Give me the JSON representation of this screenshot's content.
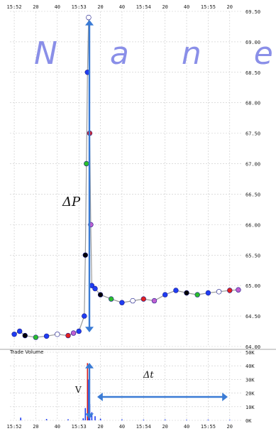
{
  "watermark": "N a n e x",
  "annotations": {
    "delta_p": "ΔP",
    "delta_t": "Δt",
    "v": "V"
  },
  "colors": {
    "annotation_arrow": "#3a7bd5",
    "price_main": "#1f3df2",
    "volume_bar": "#1f3df2",
    "volume_spike": "#d42020"
  },
  "chart_data": [
    {
      "type": "scatter",
      "title": "",
      "xlabel": "",
      "ylabel": "",
      "y_axis_side": "right",
      "x_tick_labels_top": [
        "15:52",
        "20",
        "40",
        "15:53",
        "20",
        "40",
        "15:54",
        "20",
        "40",
        "15:55",
        "20"
      ],
      "y_ticks": [
        "69.50",
        "69.00",
        "68.50",
        "68.00",
        "67.50",
        "67.00",
        "66.50",
        "66.00",
        "65.50",
        "65.00",
        "64.50",
        "64.00"
      ],
      "ylim": [
        64.0,
        69.5
      ],
      "grid": true,
      "series": [
        {
          "values_time_price": [
            [
              "15:52:00",
              64.2
            ],
            [
              "15:52:05",
              64.25
            ],
            [
              "15:52:10",
              64.18
            ],
            [
              "15:52:20",
              64.15
            ],
            [
              "15:52:30",
              64.17
            ],
            [
              "15:52:40",
              64.2
            ],
            [
              "15:52:50",
              64.18
            ],
            [
              "15:52:55",
              64.22
            ],
            [
              "15:53:00",
              64.25
            ],
            [
              "15:53:05",
              64.5
            ],
            [
              "15:53:06",
              65.5
            ],
            [
              "15:53:07",
              67.0
            ],
            [
              "15:53:08",
              68.5
            ],
            [
              "15:53:09",
              69.4
            ],
            [
              "15:53:10",
              67.5
            ],
            [
              "15:53:11",
              66.0
            ],
            [
              "15:53:12",
              65.0
            ],
            [
              "15:53:15",
              64.95
            ],
            [
              "15:53:20",
              64.85
            ],
            [
              "15:53:30",
              64.78
            ],
            [
              "15:53:40",
              64.72
            ],
            [
              "15:53:50",
              64.75
            ],
            [
              "15:54:00",
              64.78
            ],
            [
              "15:54:10",
              64.75
            ],
            [
              "15:54:20",
              64.85
            ],
            [
              "15:54:30",
              64.92
            ],
            [
              "15:54:40",
              64.88
            ],
            [
              "15:54:50",
              64.85
            ],
            [
              "15:55:00",
              64.88
            ],
            [
              "15:55:10",
              64.9
            ],
            [
              "15:55:20",
              64.92
            ],
            [
              "15:55:28",
              64.93
            ]
          ]
        }
      ]
    },
    {
      "type": "bar",
      "title": "Trade Volume",
      "x_tick_labels_bottom": [
        "15:52",
        "20",
        "40",
        "15:53",
        "20",
        "40",
        "15:54",
        "20",
        "40",
        "15:55",
        "20"
      ],
      "y_ticks": [
        "50K",
        "40K",
        "30K",
        "20K",
        "10K",
        "0K"
      ],
      "ylim": [
        0,
        50000
      ],
      "series": [
        {
          "values_time_volume": [
            [
              "15:52:06",
              2000
            ],
            [
              "15:52:30",
              1000
            ],
            [
              "15:52:50",
              800
            ],
            [
              "15:53:04",
              1500
            ],
            [
              "15:53:06",
              9000
            ],
            [
              "15:53:08",
              42000
            ],
            [
              "15:53:09",
              30000
            ],
            [
              "15:53:10",
              12000
            ],
            [
              "15:53:12",
              6000
            ],
            [
              "15:53:15",
              3000
            ],
            [
              "15:53:20",
              1200
            ],
            [
              "15:53:40",
              700
            ],
            [
              "15:54:00",
              500
            ],
            [
              "15:54:20",
              600
            ],
            [
              "15:54:40",
              400
            ],
            [
              "15:55:00",
              500
            ],
            [
              "15:55:20",
              400
            ]
          ]
        }
      ]
    }
  ]
}
